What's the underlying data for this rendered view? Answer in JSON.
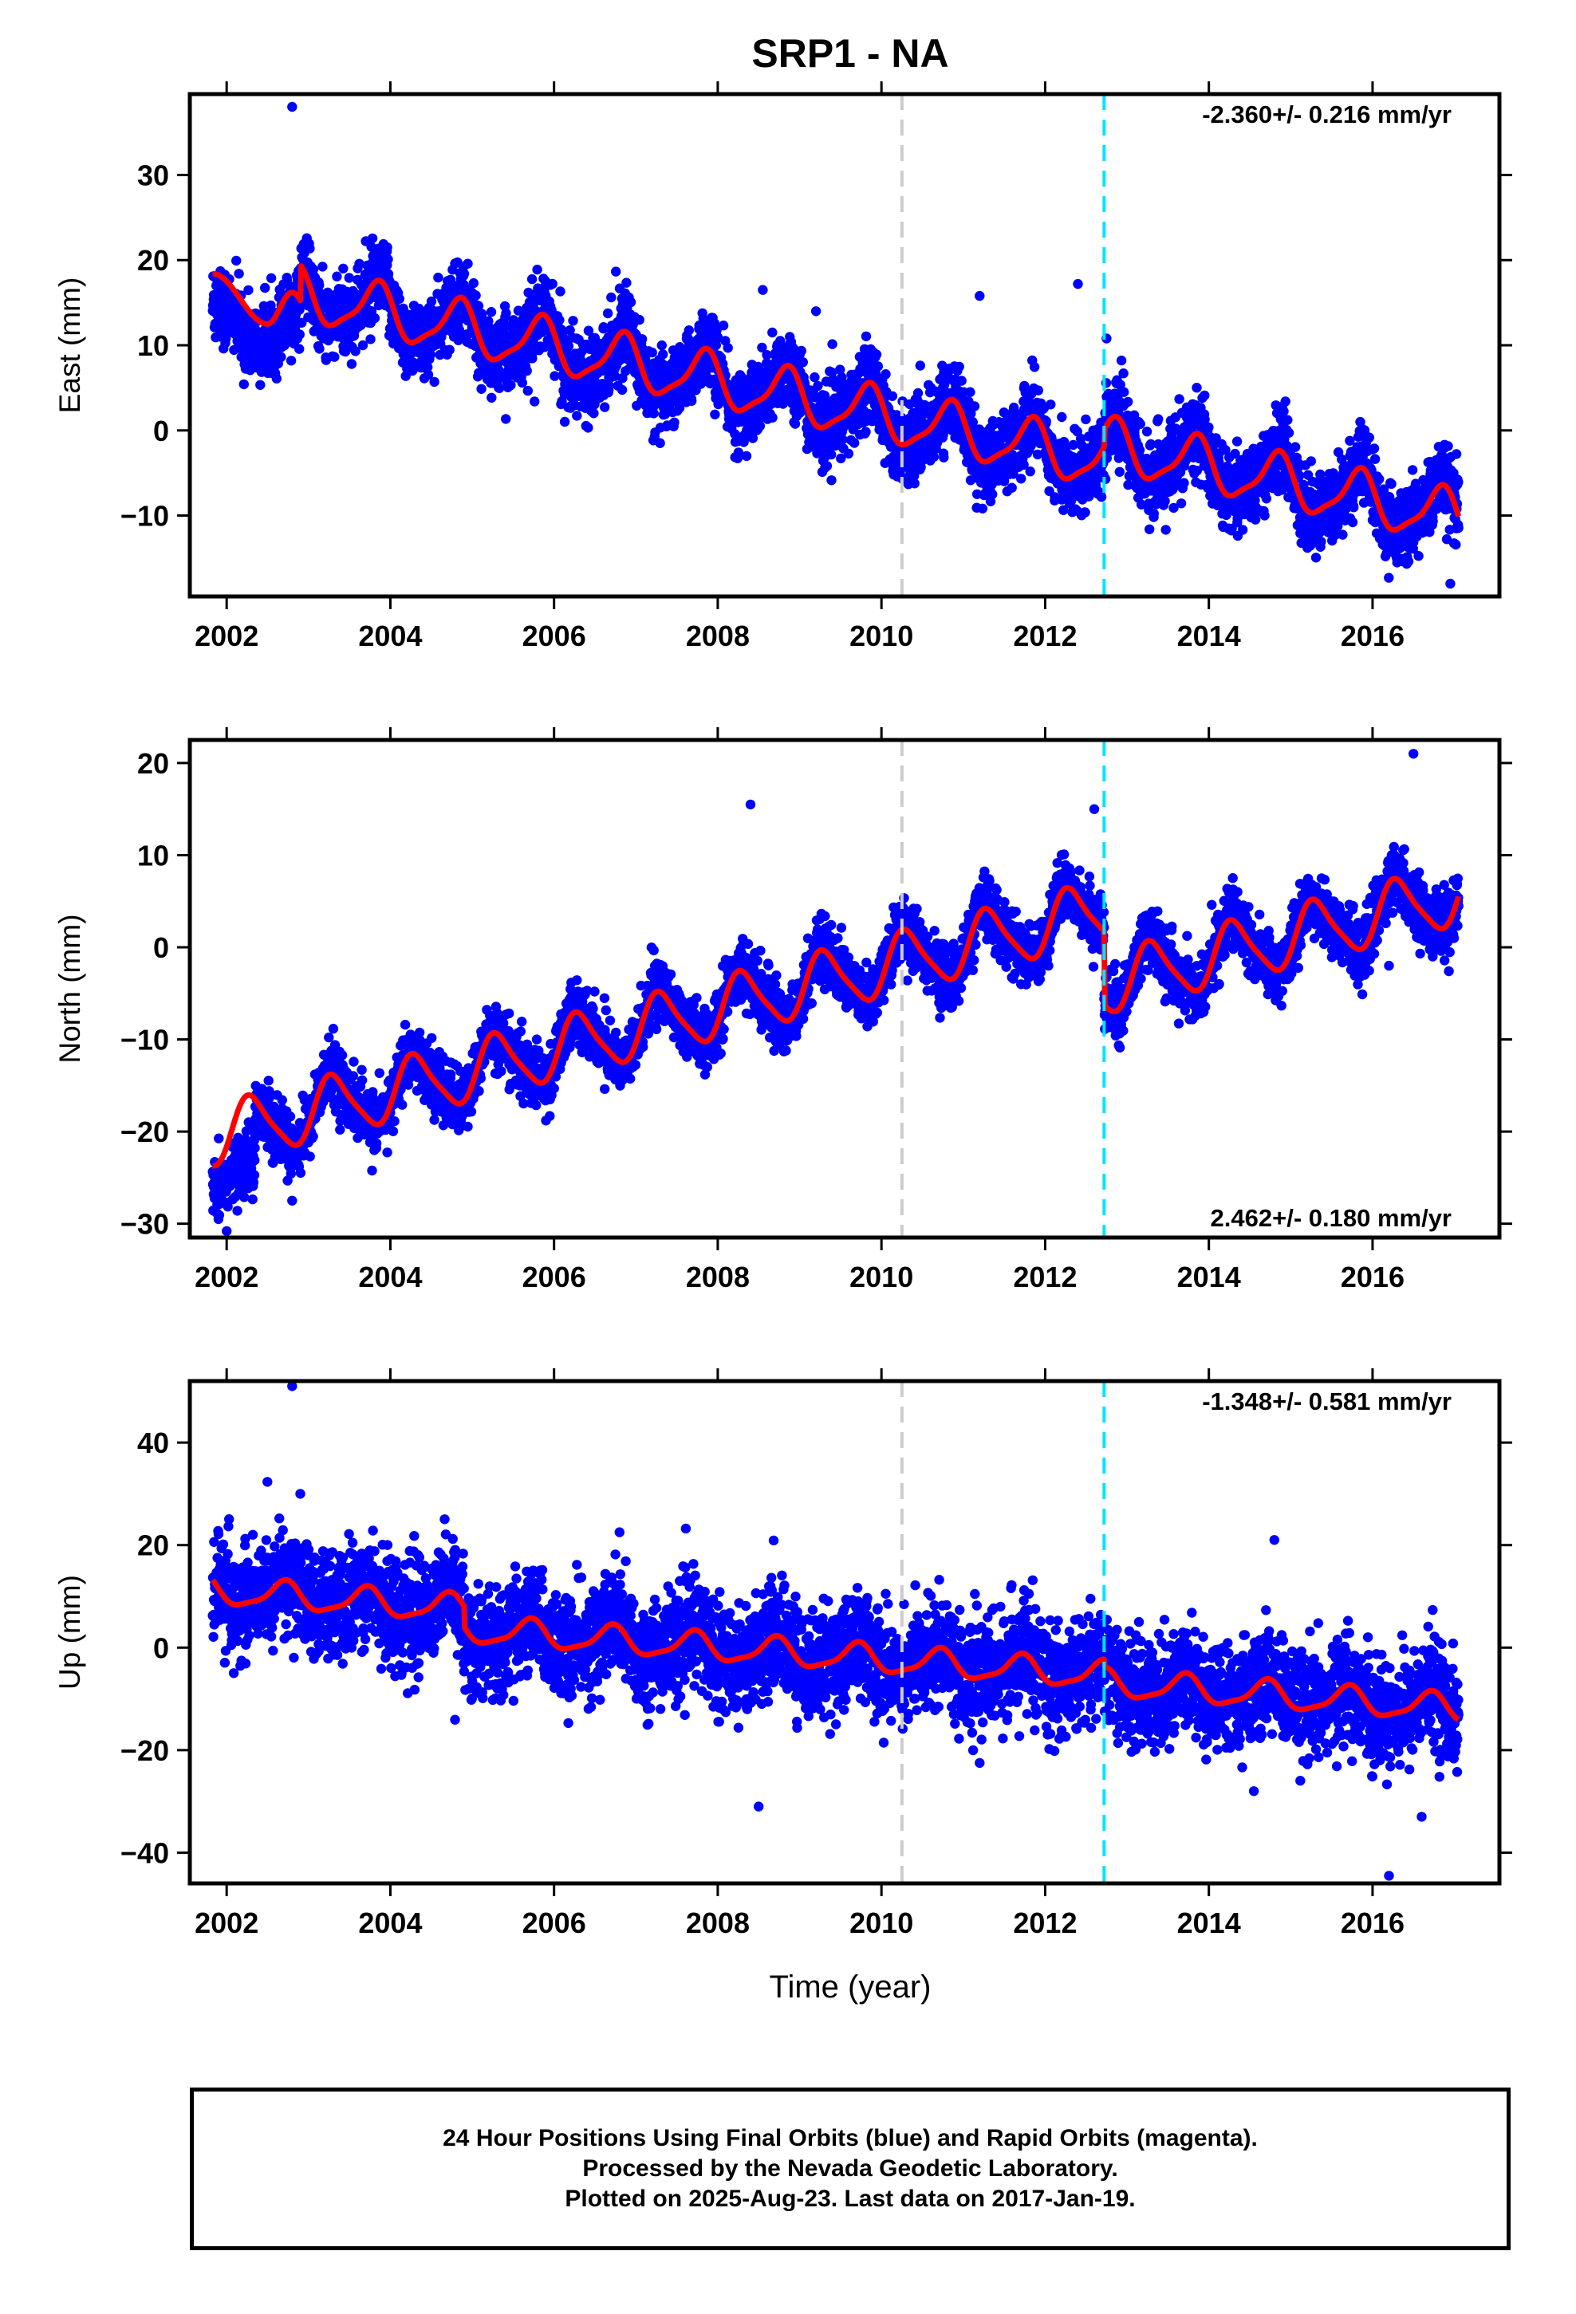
{
  "colors": {
    "final_orbits": "#0000ff",
    "model": "#ff0000",
    "antenna_change": "#cccccc",
    "equipment_change": "#00e5ff"
  },
  "caption": {
    "line1": "24 Hour Positions Using Final Orbits (blue) and Rapid Orbits (magenta).",
    "line2": "Processed by the Nevada Geodetic Laboratory.",
    "line3": "Plotted on 2025-Aug-23. Last data on 2017-Jan-19."
  },
  "chart_data": {
    "type": "scatter",
    "title": "SRP1 - NA",
    "xlabel": "Time (year)",
    "data_start": 2001.83,
    "data_end": 2017.05,
    "vertical_lines": [
      {
        "x": 2010.25,
        "color": "#cccccc",
        "style": "dashed"
      },
      {
        "x": 2012.72,
        "color": "#00e5ff",
        "style": "dashed"
      }
    ],
    "x_ticks": [
      2002,
      2004,
      2006,
      2008,
      2010,
      2012,
      2014,
      2016
    ],
    "x_tick_labels": [
      "2002",
      "2004",
      "2006",
      "2008",
      "2010",
      "2012",
      "2014",
      "2016"
    ],
    "panels": [
      {
        "id": "east",
        "ylabel": "East (mm)",
        "ylim": [
          -19.5,
          39.5
        ],
        "xlim": [
          2001.55,
          2017.55
        ],
        "yticks": [
          -10,
          0,
          10,
          20,
          30
        ],
        "rate_text": "-2.360+/- 0.216 mm/yr",
        "rate_position": "top-right",
        "series": [
          {
            "name": "Final Orbits",
            "style": "points",
            "color": "#0000ff"
          },
          {
            "name": "Model",
            "style": "line",
            "color": "#ff0000",
            "model": {
              "t0": 2001.85,
              "v0": 18.0,
              "rate": -2.0,
              "ann_amp": 3.0,
              "ann_phase": 2001.83,
              "semi_amp": 0.8,
              "semi_phase": 2001.9,
              "offsets": [
                {
                  "x": 2012.72,
                  "dv": 2.0
                }
              ],
              "early_extra": [
                {
                  "x": 2001.83,
                  "v": 18.4
                },
                {
                  "x": 2002.5,
                  "v": 12.5
                },
                {
                  "x": 2002.8,
                  "v": 16.2
                }
              ]
            },
            "noise": 2.2
          }
        ],
        "outliers": [
          [
            2002.8,
            38.0
          ],
          [
            2008.55,
            16.5
          ],
          [
            2011.2,
            15.8
          ],
          [
            2012.4,
            17.2
          ],
          [
            2012.75,
            10.8
          ],
          [
            2009.2,
            14.0
          ],
          [
            2015.85,
            1.0
          ],
          [
            2016.95,
            -18.0
          ]
        ]
      },
      {
        "id": "north",
        "ylabel": "North (mm)",
        "ylim": [
          -31.5,
          22.5
        ],
        "xlim": [
          2001.55,
          2017.55
        ],
        "yticks": [
          -30,
          -20,
          -10,
          0,
          10,
          20
        ],
        "rate_text": "2.462+/- 0.180 mm/yr",
        "rate_position": "bottom-right",
        "series": [
          {
            "name": "Final Orbits",
            "style": "points",
            "color": "#0000ff"
          },
          {
            "name": "Model",
            "style": "line",
            "color": "#ff0000",
            "model": {
              "t0": 2001.85,
              "v0": -20.5,
              "rate": 2.25,
              "ann_amp": 3.2,
              "ann_phase": 2002.3,
              "semi_amp": 0.6,
              "semi_phase": 2002.2,
              "offsets": [
                {
                  "x": 2012.72,
                  "dv": -8.0
                }
              ]
            },
            "noise": 1.6
          }
        ],
        "outliers": [
          [
            2001.9,
            -29.5
          ],
          [
            2002.0,
            -30.8
          ],
          [
            2002.8,
            -27.5
          ],
          [
            2005.95,
            -16.5
          ],
          [
            2008.4,
            15.5
          ],
          [
            2012.6,
            15.0
          ],
          [
            2016.5,
            21.0
          ],
          [
            2016.2,
            -2.0
          ]
        ]
      },
      {
        "id": "up",
        "ylabel": "Up (mm)",
        "ylim": [
          -46.0,
          52.0
        ],
        "xlim": [
          2001.55,
          2017.55
        ],
        "yticks": [
          -40,
          -20,
          0,
          20,
          40
        ],
        "rate_text": "-1.348+/- 0.581 mm/yr",
        "rate_position": "top-right",
        "series": [
          {
            "name": "Final Orbits",
            "style": "points",
            "color": "#0000ff"
          },
          {
            "name": "Model",
            "style": "line",
            "color": "#ff0000",
            "model": {
              "t0": 2001.85,
              "v0": 11.0,
              "rate": -1.15,
              "ann_amp": 2.6,
              "ann_phase": 2002.7,
              "semi_amp": 0.7,
              "semi_phase": 2002.75,
              "offsets": [
                {
                  "x": 2004.9,
                  "dv": -4.0
                },
                {
                  "x": 2012.72,
                  "dv": -1.5
                }
              ]
            },
            "noise": 5.0
          }
        ],
        "outliers": [
          [
            2002.8,
            51.0
          ],
          [
            2002.9,
            30.0
          ],
          [
            2006.8,
            22.5
          ],
          [
            2008.5,
            -31.0
          ],
          [
            2011.2,
            -22.5
          ],
          [
            2014.55,
            -28.0
          ],
          [
            2016.6,
            -33.0
          ],
          [
            2016.2,
            -44.5
          ],
          [
            2014.8,
            21.0
          ]
        ]
      }
    ]
  }
}
